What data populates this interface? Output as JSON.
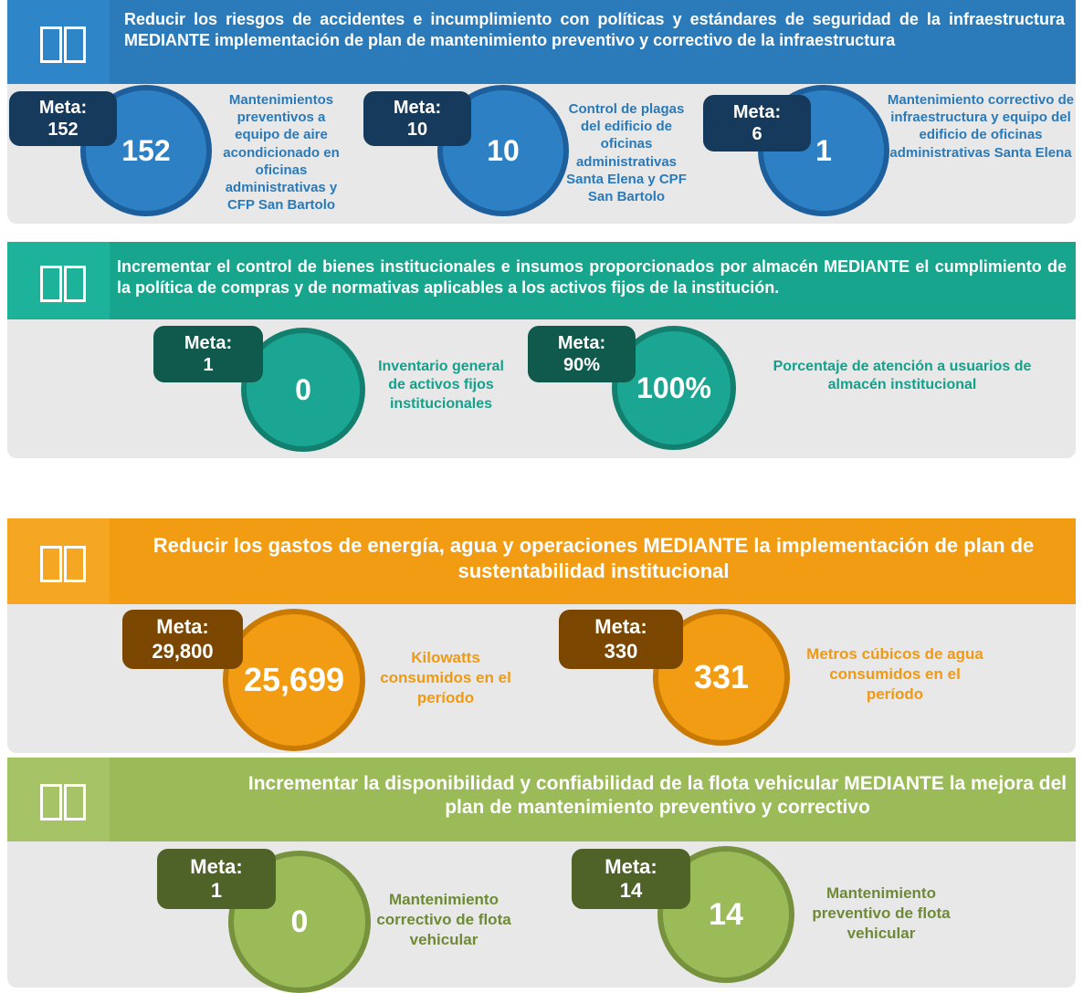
{
  "sections": [
    {
      "header": "Reducir los riesgos de accidentes e incumplimiento con políticas y estándares de seguridad de la infraestructura MEDIANTE implementación de plan de mantenimiento preventivo y correctivo de la infraestructura",
      "items": [
        {
          "meta_label": "Meta:",
          "meta_value": "152",
          "value": "152",
          "description": "Mantenimientos preventivos a equipo de aire acondicionado en oficinas administrativas y CFP San Bartolo"
        },
        {
          "meta_label": "Meta:",
          "meta_value": "10",
          "value": "10",
          "description": "Control de plagas del edificio de oficinas administrativas Santa Elena y CPF San Bartolo"
        },
        {
          "meta_label": "Meta:",
          "meta_value": "6",
          "value": "1",
          "description": "Mantenimiento correctivo de infraestructura y equipo del edificio de oficinas administrativas Santa Elena"
        }
      ]
    },
    {
      "header": "Incrementar el control de bienes institucionales e insumos proporcionados por almacén MEDIANTE el cumplimiento de la política de compras y de normativas aplicables a los activos fijos de la institución.",
      "items": [
        {
          "meta_label": "Meta:",
          "meta_value": "1",
          "value": "0",
          "description": "Inventario general de activos fijos institucionales"
        },
        {
          "meta_label": "Meta:",
          "meta_value": "90%",
          "value": "100%",
          "description": "Porcentaje de atención a usuarios de almacén institucional"
        }
      ]
    },
    {
      "header": "Reducir los gastos de energía, agua y operaciones MEDIANTE la implementación de plan de sustentabilidad institucional",
      "items": [
        {
          "meta_label": "Meta:",
          "meta_value": "29,800",
          "value": "25,699",
          "description": "Kilowatts consumidos en el período"
        },
        {
          "meta_label": "Meta:",
          "meta_value": "330",
          "value": "331",
          "description": "Metros cúbicos de agua consumidos en el período"
        }
      ]
    },
    {
      "header": "Incrementar la disponibilidad y confiabilidad de la flota vehicular MEDIANTE la mejora del plan de mantenimiento preventivo y correctivo",
      "items": [
        {
          "meta_label": "Meta:",
          "meta_value": "1",
          "value": "0",
          "description": "Mantenimiento correctivo de flota vehicular"
        },
        {
          "meta_label": "Meta:",
          "meta_value": "14",
          "value": "14",
          "description": "Mantenimiento preventivo de flota vehicular"
        }
      ]
    }
  ]
}
